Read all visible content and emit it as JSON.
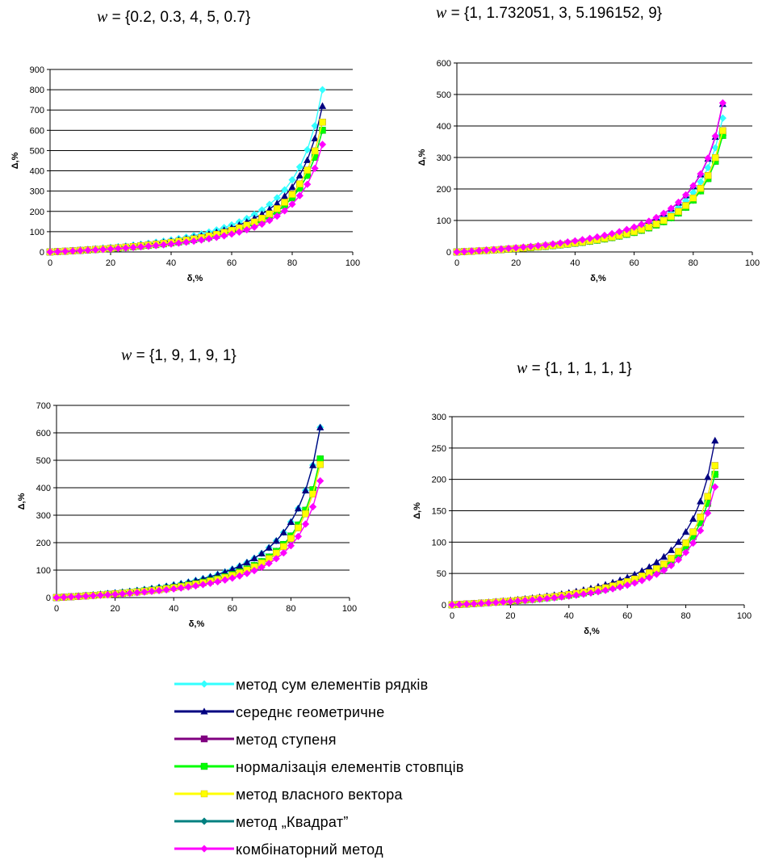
{
  "chart_data": {
    "type": "line",
    "series_styles": [
      {
        "name": "метод сум елементів рядків",
        "color": "#33ffff",
        "marker": "diamond"
      },
      {
        "name": "середнє геометричне",
        "color": "#000080",
        "marker": "triangle"
      },
      {
        "name": "метод ступеня",
        "color": "#800080",
        "marker": "square"
      },
      {
        "name": "нормалізація елементів стовпців",
        "color": "#00ff00",
        "marker": "square"
      },
      {
        "name": "метод власного вектора",
        "color": "#ffff00",
        "marker": "square"
      },
      {
        "name": "метод „Квадрат”",
        "color": "#008080",
        "marker": "diamond"
      },
      {
        "name": "комбінаторний метод",
        "color": "#ff00ff",
        "marker": "diamond"
      }
    ],
    "panels": [
      {
        "title_var": "w",
        "title_rest": " = {0.2, 0.3, 4, 5, 0.7}",
        "xlabel": "δ,%",
        "ylabel": "Δ,%",
        "xlim": [
          0,
          100
        ],
        "ylim": [
          0,
          900
        ],
        "xticks": [
          0,
          20,
          40,
          60,
          80,
          100
        ],
        "yticks": [
          0,
          100,
          200,
          300,
          400,
          500,
          600,
          700,
          800,
          900
        ],
        "grid": true,
        "end_values": [
          800,
          720,
          640,
          600,
          640,
          600,
          530
        ]
      },
      {
        "title_var": "w",
        "title_rest": " = {1, 1.732051, 3, 5.196152, 9}",
        "xlabel": "δ,%",
        "ylabel": "Δ,%",
        "xlim": [
          0,
          100
        ],
        "ylim": [
          0,
          600
        ],
        "xticks": [
          0,
          20,
          40,
          60,
          80,
          100
        ],
        "yticks": [
          0,
          100,
          200,
          300,
          400,
          500,
          600
        ],
        "grid": true,
        "end_values": [
          425,
          470,
          385,
          370,
          385,
          370,
          473
        ]
      },
      {
        "title_var": "w",
        "title_rest": " = {1, 9, 1, 9, 1}",
        "xlabel": "δ,%",
        "ylabel": "Δ,%",
        "xlim": [
          0,
          100
        ],
        "ylim": [
          0,
          700
        ],
        "xticks": [
          0,
          20,
          40,
          60,
          80,
          100
        ],
        "yticks": [
          0,
          100,
          200,
          300,
          400,
          500,
          600,
          700
        ],
        "grid": true,
        "end_values": [
          620,
          620,
          485,
          505,
          485,
          505,
          425
        ]
      },
      {
        "title_var": "w",
        "title_rest": " = {1, 1, 1, 1, 1}",
        "xlabel": "δ,%",
        "ylabel": "Δ,%",
        "xlim": [
          0,
          100
        ],
        "ylim": [
          0,
          300
        ],
        "xticks": [
          0,
          20,
          40,
          60,
          80,
          100
        ],
        "yticks": [
          0,
          50,
          100,
          150,
          200,
          250,
          300
        ],
        "grid": true,
        "end_values": [
          208,
          262,
          222,
          208,
          222,
          208,
          188
        ]
      }
    ],
    "legend_placement": "bottom-center"
  }
}
